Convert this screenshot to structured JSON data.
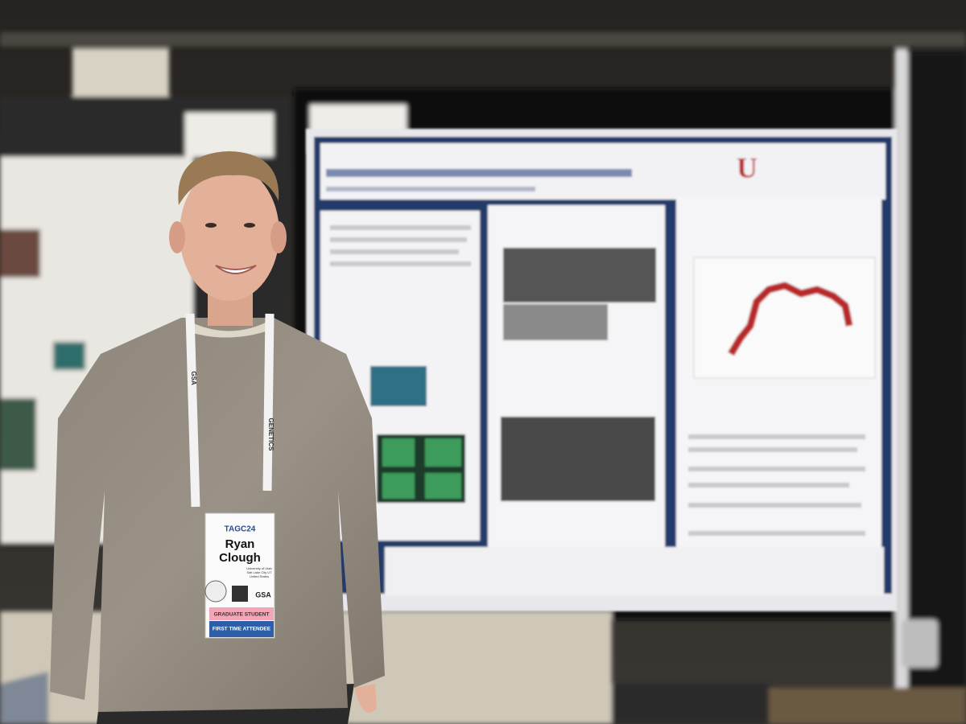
{
  "badge": {
    "event": "TAGC24",
    "first_name": "Ryan",
    "last_name": "Clough",
    "affiliation": [
      "University of Utah",
      "Salt Lake City UT",
      "United States"
    ],
    "org": "GSA",
    "role": "GRADUATE STUDENT",
    "status": "FIRST TIME ATTENDEE"
  },
  "lanyard": {
    "texts": [
      "GSA",
      "GENETICS"
    ]
  },
  "poster": {
    "logo": "U"
  }
}
